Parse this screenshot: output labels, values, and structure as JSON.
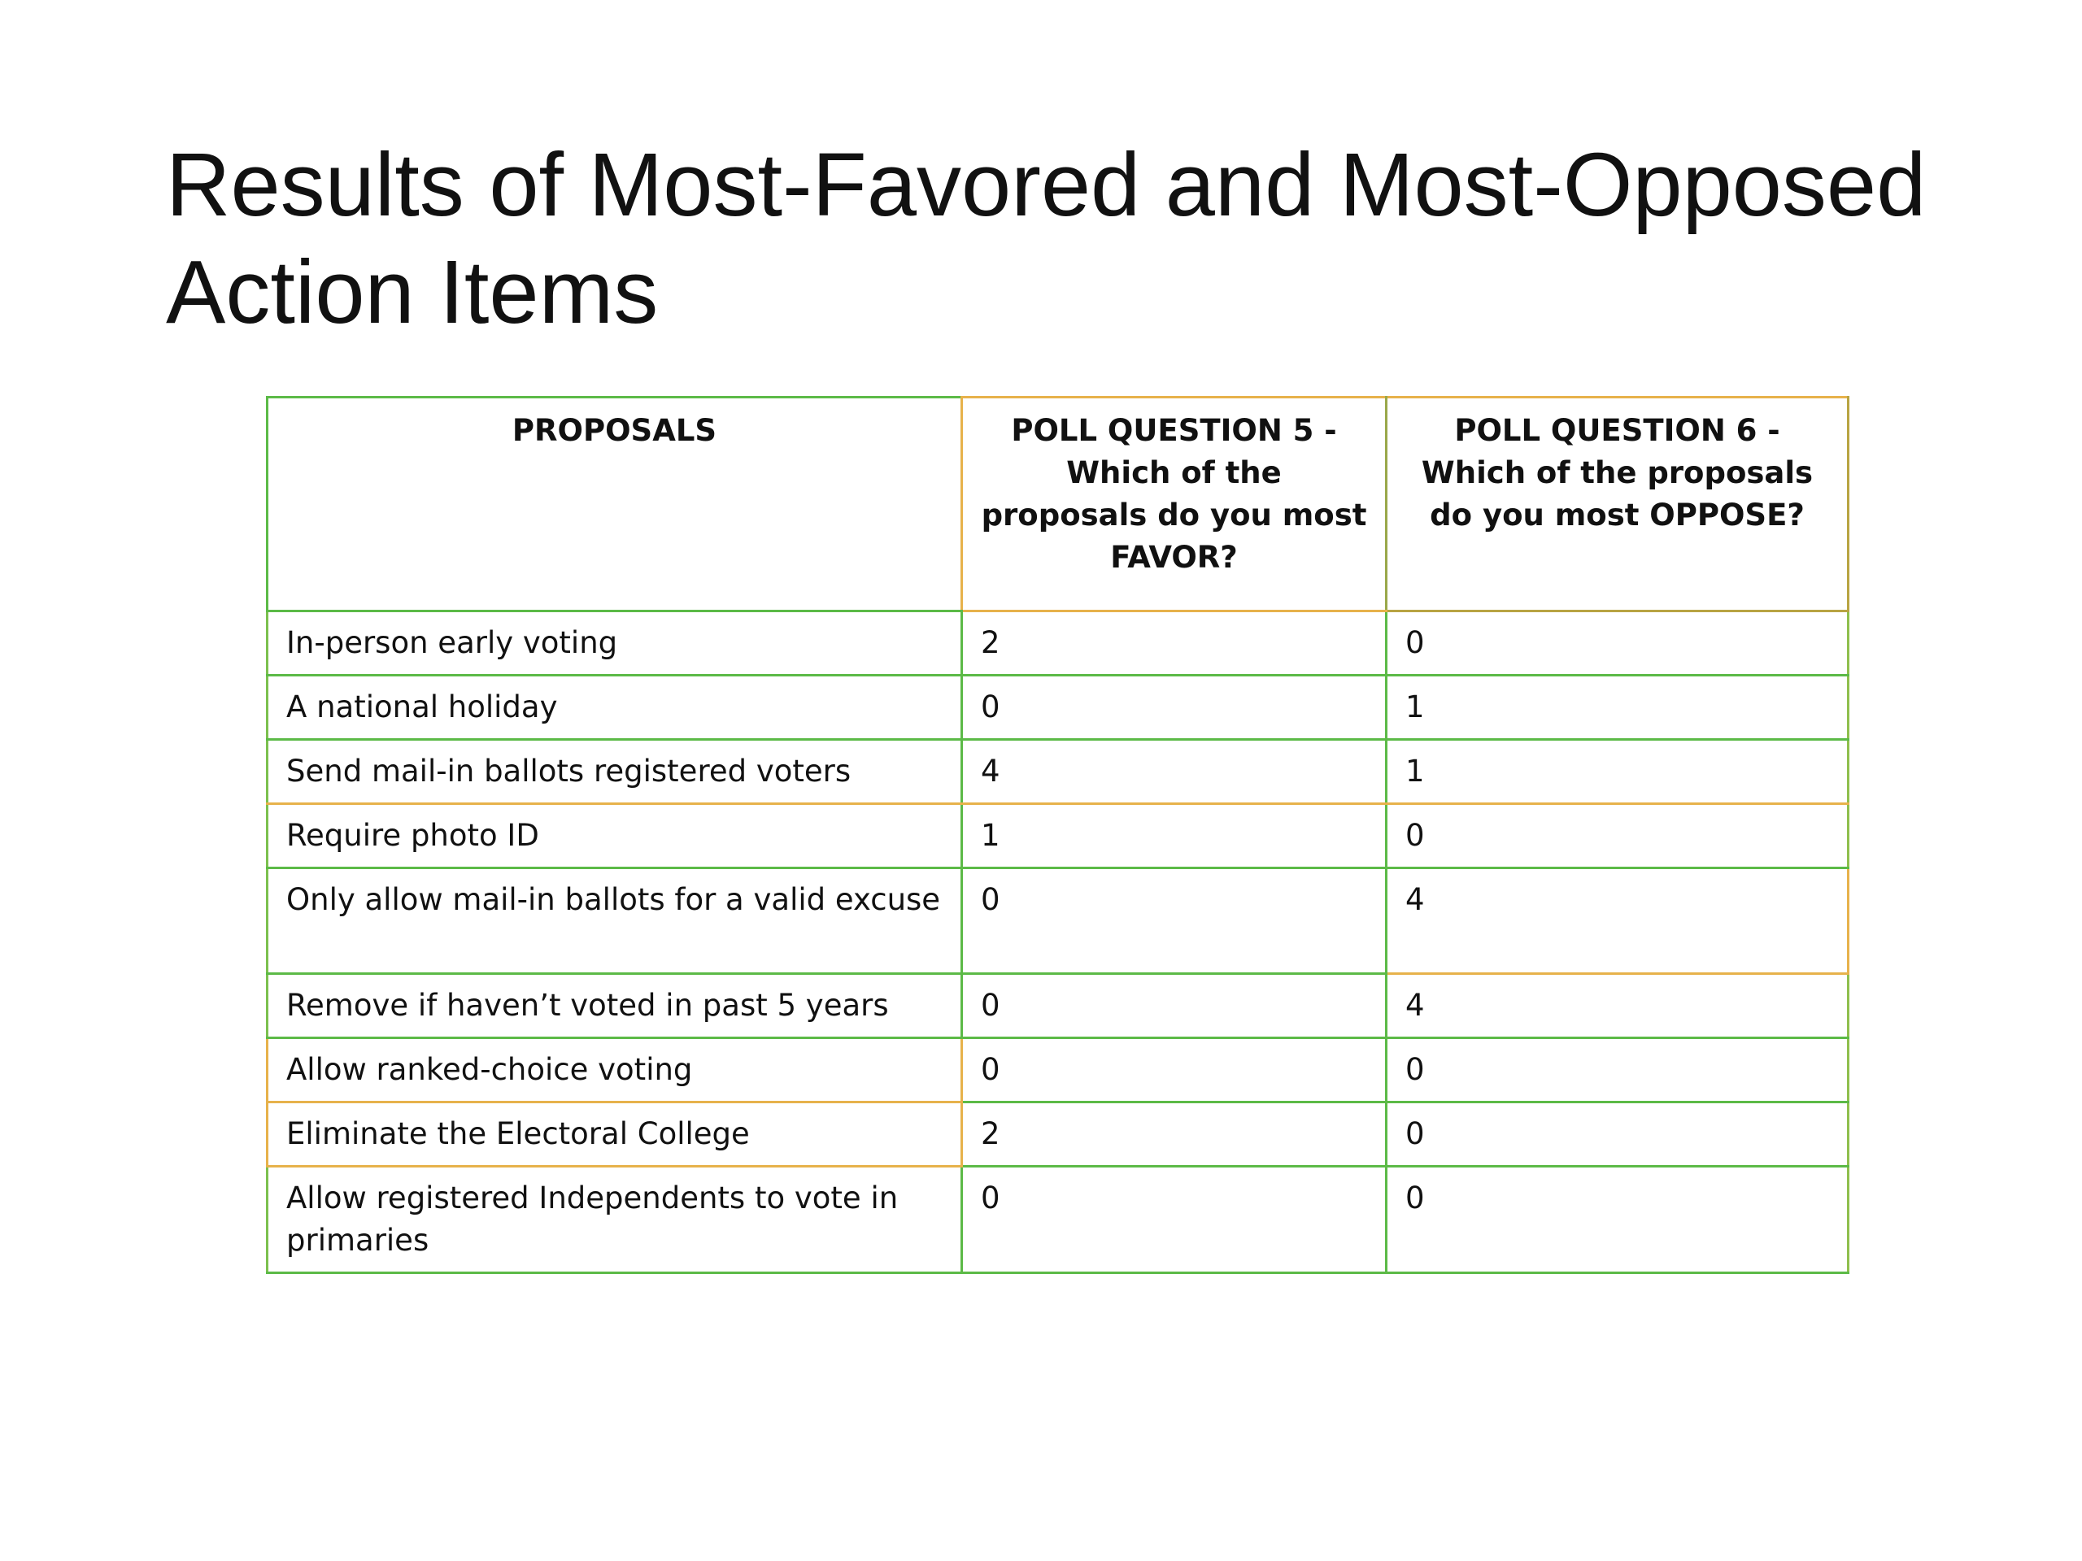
{
  "slide": {
    "title": "Results of Most-Favored and Most-Opposed Action Items"
  },
  "table": {
    "headers": [
      "PROPOSALS",
      "POLL QUESTION 5 - Which of the proposals do you most FAVOR?",
      "POLL QUESTION 6 - Which of the proposals do you most OPPOSE?"
    ],
    "rows": [
      {
        "proposal": "In-person early voting",
        "favor": "2",
        "oppose": "0"
      },
      {
        "proposal": "A national holiday",
        "favor": "0",
        "oppose": "1"
      },
      {
        "proposal": "Send mail-in ballots registered voters",
        "favor": "4",
        "oppose": "1"
      },
      {
        "proposal": "Require photo ID",
        "favor": "1",
        "oppose": "0"
      },
      {
        "proposal": "Only allow mail-in ballots for a valid excuse",
        "favor": "0",
        "oppose": "4"
      },
      {
        "proposal": "Remove if haven’t voted in past 5 years",
        "favor": "0",
        "oppose": "4"
      },
      {
        "proposal": "Allow ranked-choice voting",
        "favor": "0",
        "oppose": "0"
      },
      {
        "proposal": "Eliminate the Electoral College",
        "favor": "2",
        "oppose": "0"
      },
      {
        "proposal": "Allow registered Independents to vote in primaries",
        "favor": "0",
        "oppose": "0"
      }
    ]
  },
  "colors": {
    "border_green": "#5cba47",
    "border_orange": "#e7b24b",
    "text": "#111111",
    "background": "#ffffff"
  }
}
